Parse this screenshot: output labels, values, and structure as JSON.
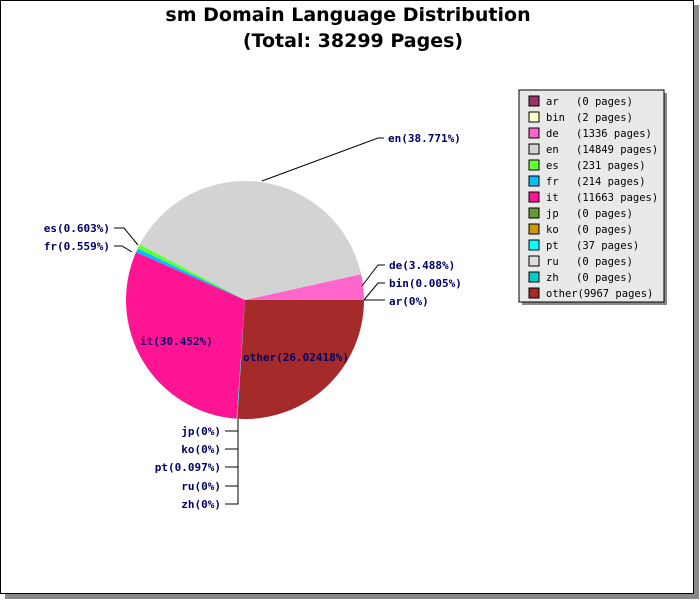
{
  "chart_data": {
    "type": "pie",
    "title": "sm Domain Language Distribution",
    "subtitle": "(Total: 38299 Pages)",
    "slices": [
      {
        "key": "ar",
        "pages": 0,
        "percent": 0,
        "slice_label": "ar(0%)",
        "legend_pages": "(0 pages)",
        "color": "#993366"
      },
      {
        "key": "bin",
        "pages": 2,
        "percent": 0.005,
        "slice_label": "bin(0.005%)",
        "legend_pages": "(2 pages)",
        "color": "#FFFFCC"
      },
      {
        "key": "de",
        "pages": 1336,
        "percent": 3.488,
        "slice_label": "de(3.488%)",
        "legend_pages": "(1336 pages)",
        "color": "#FF66CC"
      },
      {
        "key": "en",
        "pages": 14849,
        "percent": 38.771,
        "slice_label": "en(38.771%)",
        "legend_pages": "(14849 pages)",
        "color": "#D3D3D3"
      },
      {
        "key": "es",
        "pages": 231,
        "percent": 0.603,
        "slice_label": "es(0.603%)",
        "legend_pages": "(231 pages)",
        "color": "#66FF33"
      },
      {
        "key": "fr",
        "pages": 214,
        "percent": 0.559,
        "slice_label": "fr(0.559%)",
        "legend_pages": "(214 pages)",
        "color": "#00BFFF"
      },
      {
        "key": "it",
        "pages": 11663,
        "percent": 30.452,
        "slice_label": "it(30.452%)",
        "legend_pages": "(11663 pages)",
        "color": "#FF1493"
      },
      {
        "key": "jp",
        "pages": 0,
        "percent": 0,
        "slice_label": "jp(0%)",
        "legend_pages": "(0 pages)",
        "color": "#669933"
      },
      {
        "key": "ko",
        "pages": 0,
        "percent": 0,
        "slice_label": "ko(0%)",
        "legend_pages": "(0 pages)",
        "color": "#CC9900"
      },
      {
        "key": "pt",
        "pages": 37,
        "percent": 0.097,
        "slice_label": "pt(0.097%)",
        "legend_pages": "(37 pages)",
        "color": "#00FFFF"
      },
      {
        "key": "ru",
        "pages": 0,
        "percent": 0,
        "slice_label": "ru(0%)",
        "legend_pages": "(0 pages)",
        "color": "#DDDDDD"
      },
      {
        "key": "zh",
        "pages": 0,
        "percent": 0,
        "slice_label": "zh(0%)",
        "legend_pages": "(0 pages)",
        "color": "#00CCCC"
      },
      {
        "key": "other",
        "pages": 9967,
        "percent": 26.02418,
        "slice_label": "other(26.02418%)",
        "legend_pages": "(9967 pages)",
        "color": "#A52A2A"
      }
    ],
    "legend_placement": "right"
  }
}
